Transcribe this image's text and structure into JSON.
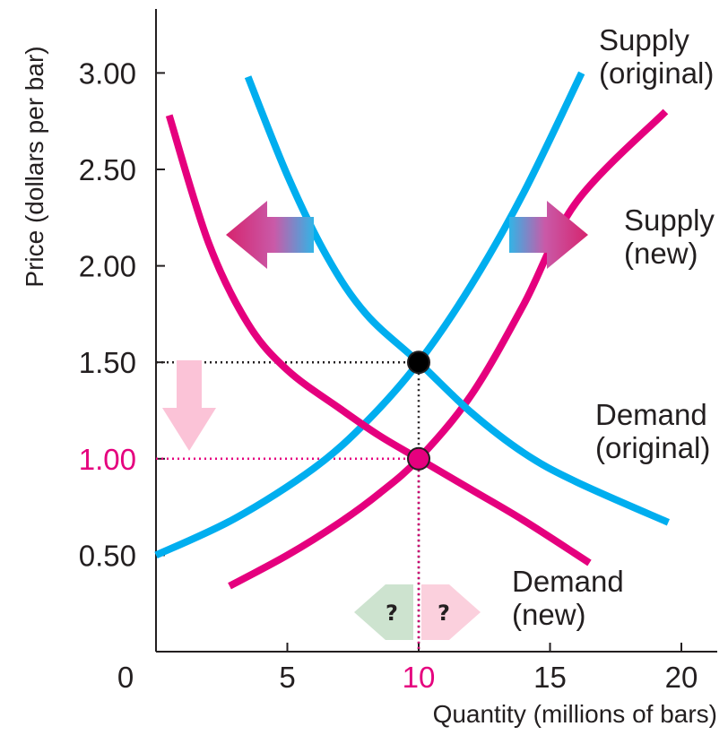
{
  "chart_data": {
    "type": "line",
    "xlabel": "Quantity (millions of bars)",
    "ylabel": "Price (dollars per bar)",
    "xlim": [
      0,
      20.5
    ],
    "ylim": [
      0,
      3.3
    ],
    "x_ticks": [
      {
        "value": 0,
        "label": "0"
      },
      {
        "value": 5,
        "label": "5"
      },
      {
        "value": 10,
        "label": "10",
        "highlight": true
      },
      {
        "value": 15,
        "label": "15"
      },
      {
        "value": 20,
        "label": "20"
      }
    ],
    "y_ticks": [
      {
        "value": 0.5,
        "label": "0.50"
      },
      {
        "value": 1.0,
        "label": "1.00",
        "highlight": true
      },
      {
        "value": 1.5,
        "label": "1.50"
      },
      {
        "value": 2.0,
        "label": "2.00"
      },
      {
        "value": 2.5,
        "label": "2.50"
      },
      {
        "value": 3.0,
        "label": "3.00"
      }
    ],
    "series": [
      {
        "name": "Supply (original)",
        "label_lines": [
          "Supply",
          "(original)"
        ],
        "color": "#00aeef",
        "points": [
          [
            0,
            0.5
          ],
          [
            3,
            0.69
          ],
          [
            6,
            0.95
          ],
          [
            8,
            1.19
          ],
          [
            10,
            1.5
          ],
          [
            12,
            1.9
          ],
          [
            14,
            2.38
          ],
          [
            16.2,
            3.0
          ]
        ]
      },
      {
        "name": "Supply (new)",
        "label_lines": [
          "Supply",
          "(new)"
        ],
        "color": "#e5007e",
        "points": [
          [
            2.8,
            0.34
          ],
          [
            5,
            0.5
          ],
          [
            7,
            0.67
          ],
          [
            8.5,
            0.82
          ],
          [
            10,
            1.0
          ],
          [
            12,
            1.33
          ],
          [
            14,
            1.8
          ],
          [
            16,
            2.33
          ],
          [
            19.4,
            2.8
          ]
        ]
      },
      {
        "name": "Demand (original)",
        "label_lines": [
          "Demand",
          "(original)"
        ],
        "color": "#00aeef",
        "points": [
          [
            3.5,
            2.98
          ],
          [
            5,
            2.47
          ],
          [
            6.5,
            2.05
          ],
          [
            8,
            1.75
          ],
          [
            10,
            1.5
          ],
          [
            12,
            1.24
          ],
          [
            14,
            1.03
          ],
          [
            16,
            0.88
          ],
          [
            19.5,
            0.67
          ]
        ]
      },
      {
        "name": "Demand (new)",
        "label_lines": [
          "Demand",
          "(new)"
        ],
        "color": "#e5007e",
        "points": [
          [
            0.5,
            2.78
          ],
          [
            2,
            2.12
          ],
          [
            3.5,
            1.7
          ],
          [
            5,
            1.46
          ],
          [
            7,
            1.26
          ],
          [
            8.5,
            1.12
          ],
          [
            10,
            1.0
          ],
          [
            12,
            0.84
          ],
          [
            14,
            0.68
          ],
          [
            16.5,
            0.46
          ]
        ]
      }
    ],
    "equilibria": [
      {
        "name": "original",
        "x": 10,
        "y": 1.5,
        "color": "#000000"
      },
      {
        "name": "new",
        "x": 10,
        "y": 1.0,
        "color": "#e5007e"
      }
    ],
    "annotations": {
      "quantity_change_labels": [
        "?",
        "?"
      ]
    },
    "grid": false,
    "legend": "none"
  }
}
